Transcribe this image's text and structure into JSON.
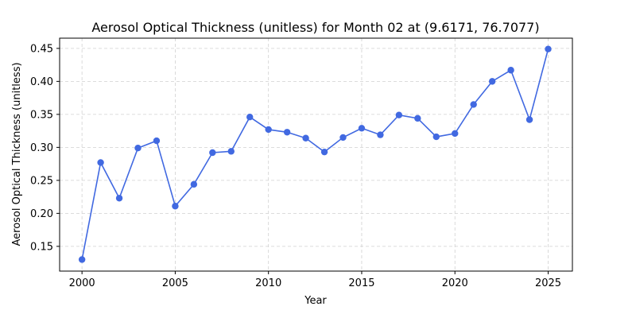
{
  "chart_data": {
    "type": "line",
    "title": "Aerosol Optical Thickness (unitless) for Month 02 at (9.6171, 76.7077)",
    "xlabel": "Year",
    "ylabel": "Aerosol Optical Thickness (unitless)",
    "xlim": [
      1998.8,
      2026.3
    ],
    "ylim": [
      0.1125,
      0.4655
    ],
    "xticks": [
      2000,
      2005,
      2010,
      2015,
      2020,
      2025
    ],
    "yticks": [
      0.15,
      0.2,
      0.25,
      0.3,
      0.35,
      0.4,
      0.45
    ],
    "grid": true,
    "color": "#4169e1",
    "series": [
      {
        "x": [
          2000,
          2001,
          2002,
          2003,
          2004,
          2005,
          2006,
          2007,
          2008,
          2009,
          2010,
          2011,
          2012,
          2013,
          2014,
          2015,
          2016,
          2017,
          2018,
          2019,
          2020,
          2021,
          2022,
          2023,
          2024,
          2025
        ],
        "y": [
          0.13,
          0.277,
          0.223,
          0.299,
          0.31,
          0.211,
          0.244,
          0.292,
          0.294,
          0.346,
          0.327,
          0.323,
          0.314,
          0.293,
          0.315,
          0.329,
          0.319,
          0.349,
          0.344,
          0.316,
          0.321,
          0.365,
          0.4,
          0.417,
          0.342,
          0.449
        ]
      }
    ]
  }
}
